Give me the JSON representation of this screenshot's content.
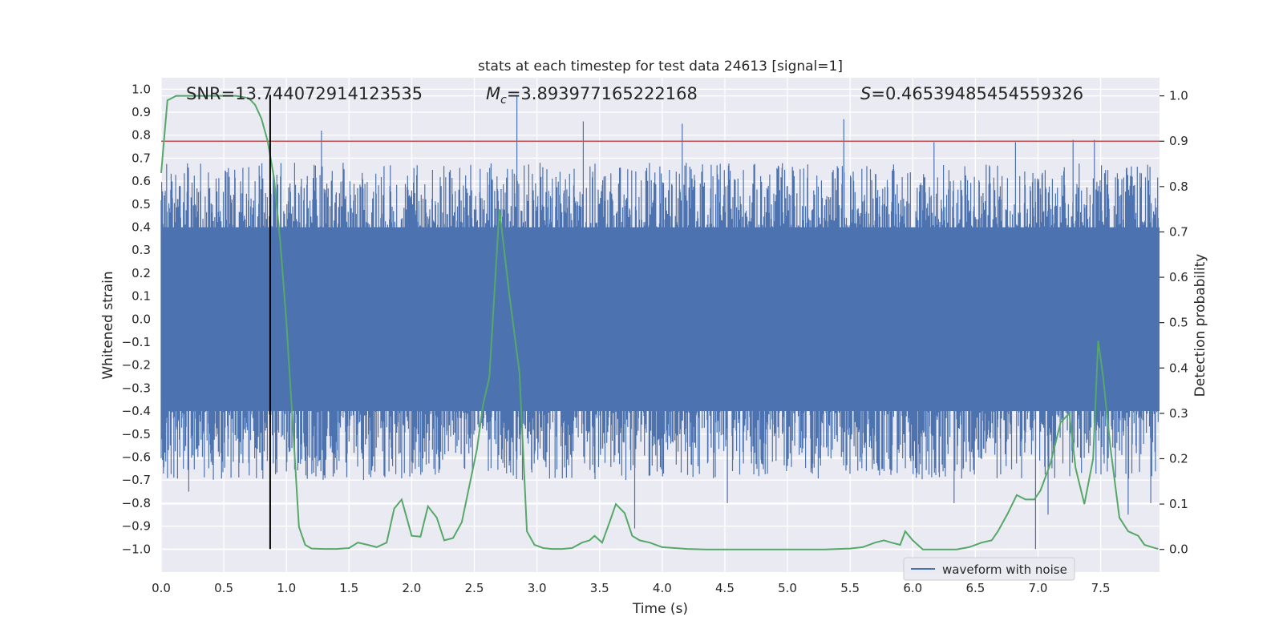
{
  "chart_data": {
    "type": "line",
    "title": "stats at each timestep for test data 24613 [signal=1]",
    "xlabel": "Time (s)",
    "ylabel": "Whitened strain",
    "y2label": "Detection probability",
    "xlim": [
      0.0,
      7.97
    ],
    "ylim": [
      -1.1,
      1.05
    ],
    "y2lim": [
      -0.05,
      1.04
    ],
    "xticks": [
      0.0,
      0.5,
      1.0,
      1.5,
      2.0,
      2.5,
      3.0,
      3.5,
      4.0,
      4.5,
      5.0,
      5.5,
      6.0,
      6.5,
      7.0,
      7.5
    ],
    "xtick_labels": [
      "0.0",
      "0.5",
      "1.0",
      "1.5",
      "2.0",
      "2.5",
      "3.0",
      "3.5",
      "4.0",
      "4.5",
      "5.0",
      "5.5",
      "6.0",
      "6.5",
      "7.0",
      "7.5"
    ],
    "yticks": [
      1.0,
      0.9,
      0.8,
      0.7,
      0.6,
      0.5,
      0.4,
      0.3,
      0.2,
      0.1,
      0.0,
      -0.1,
      -0.2,
      -0.3,
      -0.4,
      -0.5,
      -0.6,
      -0.7,
      -0.8,
      -0.9,
      -1.0
    ],
    "ytick_labels": [
      "1.0",
      "0.9",
      "0.8",
      "0.7",
      "0.6",
      "0.5",
      "0.4",
      "0.3",
      "0.2",
      "0.1",
      "0.0",
      "−0.1",
      "−0.2",
      "−0.3",
      "−0.4",
      "−0.5",
      "−0.6",
      "−0.7",
      "−0.8",
      "−0.9",
      "−1.0"
    ],
    "y2ticks": [
      1.0,
      0.9,
      0.8,
      0.7,
      0.6,
      0.5,
      0.4,
      0.3,
      0.2,
      0.1,
      0.0
    ],
    "y2tick_labels": [
      "1.0",
      "0.9",
      "0.8",
      "0.7",
      "0.6",
      "0.5",
      "0.4",
      "0.3",
      "0.2",
      "0.1",
      "0.0"
    ],
    "annotations": {
      "snr": "SNR=13.744072914123535",
      "mc_symbol": "M",
      "mc_sub": "c",
      "mc_value": "=3.893977165222168",
      "s_symbol": "S",
      "s_value": "=0.46539485454559326"
    },
    "threshold": {
      "value": 0.9,
      "axis": "y2",
      "color": "#c44e52"
    },
    "marker_time": 0.87,
    "legend": {
      "label": "waveform with noise",
      "location": "lower-right"
    },
    "colors": {
      "waveform": "#4c72b0",
      "probability": "#55a868",
      "background": "#eaeaf2",
      "grid": "#ffffff",
      "marker": "#000000"
    },
    "series": [
      {
        "name": "waveform with noise",
        "axis": "y",
        "kind": "dense-noise",
        "core_amplitude": 0.4,
        "typical_peak": 0.6,
        "peaks": [
          {
            "t": 1.28,
            "v": 0.82
          },
          {
            "t": 2.84,
            "v": 0.97
          },
          {
            "t": 3.37,
            "v": 0.86
          },
          {
            "t": 4.16,
            "v": 0.85
          },
          {
            "t": 5.45,
            "v": 0.87
          },
          {
            "t": 6.17,
            "v": 0.77
          },
          {
            "t": 6.82,
            "v": 0.77
          },
          {
            "t": 7.28,
            "v": 0.78
          },
          {
            "t": 7.45,
            "v": 0.78
          },
          {
            "t": 3.78,
            "v": -0.91
          },
          {
            "t": 6.98,
            "v": -1.0
          },
          {
            "t": 7.08,
            "v": -0.85
          },
          {
            "t": 7.72,
            "v": -0.85
          },
          {
            "t": 0.22,
            "v": -0.75
          },
          {
            "t": 4.52,
            "v": -0.8
          },
          {
            "t": 6.33,
            "v": -0.8
          },
          {
            "t": 7.9,
            "v": -0.8
          }
        ]
      },
      {
        "name": "detection probability",
        "axis": "y2",
        "x": [
          0.0,
          0.05,
          0.12,
          0.2,
          0.3,
          0.4,
          0.5,
          0.6,
          0.7,
          0.75,
          0.8,
          0.85,
          0.9,
          0.95,
          1.0,
          1.05,
          1.1,
          1.15,
          1.2,
          1.3,
          1.4,
          1.5,
          1.57,
          1.65,
          1.72,
          1.8,
          1.86,
          1.92,
          2.0,
          2.07,
          2.13,
          2.2,
          2.26,
          2.33,
          2.4,
          2.46,
          2.52,
          2.57,
          2.62,
          2.7,
          2.78,
          2.86,
          2.92,
          2.98,
          3.05,
          3.12,
          3.2,
          3.28,
          3.36,
          3.42,
          3.46,
          3.52,
          3.58,
          3.63,
          3.7,
          3.76,
          3.82,
          3.9,
          4.0,
          4.1,
          4.2,
          4.35,
          4.5,
          4.7,
          4.9,
          5.1,
          5.3,
          5.5,
          5.6,
          5.7,
          5.77,
          5.83,
          5.9,
          5.94,
          6.0,
          6.08,
          6.2,
          6.35,
          6.45,
          6.55,
          6.63,
          6.68,
          6.76,
          6.83,
          6.9,
          6.97,
          7.02,
          7.1,
          7.18,
          7.25,
          7.3,
          7.37,
          7.44,
          7.48,
          7.52,
          7.58,
          7.65,
          7.72,
          7.8,
          7.85,
          7.91,
          7.96
        ],
        "values": [
          0.83,
          0.99,
          1.0,
          1.0,
          1.0,
          1.0,
          1.0,
          1.0,
          0.995,
          0.98,
          0.95,
          0.9,
          0.82,
          0.68,
          0.5,
          0.28,
          0.05,
          0.01,
          0.002,
          0.001,
          0.001,
          0.003,
          0.015,
          0.01,
          0.005,
          0.015,
          0.09,
          0.11,
          0.03,
          0.028,
          0.095,
          0.07,
          0.02,
          0.025,
          0.06,
          0.14,
          0.22,
          0.32,
          0.38,
          0.75,
          0.56,
          0.39,
          0.04,
          0.01,
          0.003,
          0.001,
          0.001,
          0.003,
          0.015,
          0.02,
          0.03,
          0.015,
          0.06,
          0.1,
          0.08,
          0.03,
          0.02,
          0.015,
          0.005,
          0.003,
          0.001,
          0.0,
          0.0,
          0.0,
          0.0,
          0.0,
          0.0,
          0.002,
          0.005,
          0.015,
          0.02,
          0.015,
          0.01,
          0.04,
          0.02,
          0.0,
          0.0,
          0.0,
          0.005,
          0.015,
          0.02,
          0.04,
          0.08,
          0.12,
          0.11,
          0.11,
          0.13,
          0.19,
          0.28,
          0.3,
          0.18,
          0.1,
          0.2,
          0.46,
          0.38,
          0.22,
          0.07,
          0.04,
          0.03,
          0.01,
          0.005,
          0.001
        ]
      }
    ]
  }
}
